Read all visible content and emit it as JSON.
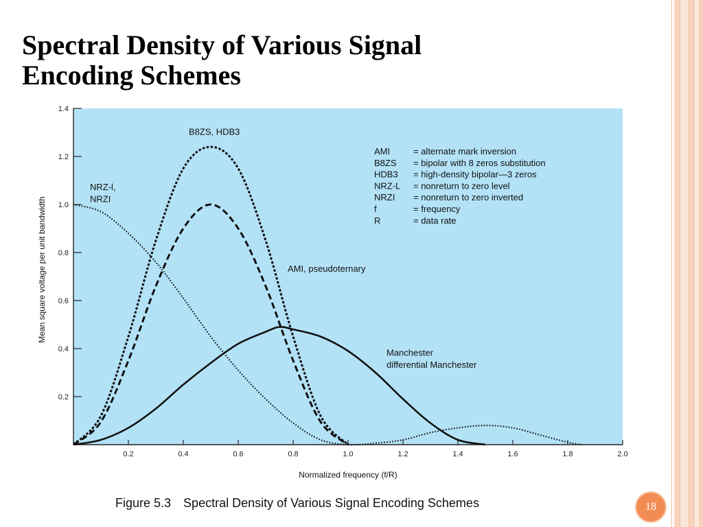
{
  "slide": {
    "title_lines": [
      "Spectral Density of Various Signal",
      "Encoding Schemes"
    ],
    "page_number": "18",
    "caption": {
      "figure": "Figure 5.3",
      "text": "Spectral Density of Various Signal Encoding Schemes"
    },
    "colors": {
      "stripe_outer": "#f6c2a6",
      "stripe_mid": "#fbe2d4",
      "badge": "#f28c55"
    }
  },
  "chart_data": {
    "type": "line",
    "background": "#b3e2f7",
    "xlabel": "Normalized frequency (f/R)",
    "ylabel": "Mean square voltage per unit bandwidth",
    "xlim": [
      0,
      2.0
    ],
    "ylim": [
      0,
      1.4
    ],
    "xticks": [
      0.2,
      0.4,
      0.6,
      0.8,
      1.0,
      1.2,
      1.4,
      1.6,
      1.8,
      2.0
    ],
    "xtick_labels": [
      "0.2",
      "0.4",
      "0.6",
      "0.8",
      "1.0",
      "1.2",
      "1.4",
      "1.6",
      "1.8",
      "2.0"
    ],
    "yticks": [
      0.2,
      0.4,
      0.6,
      0.8,
      1.0,
      1.2,
      1.4
    ],
    "ytick_labels": [
      "0.2",
      "0.4",
      "0.6",
      "0.8",
      "1.0",
      "1.2",
      "1.4"
    ],
    "series": [
      {
        "name": "NRZ-l, NRZI",
        "style": "dotted",
        "x": [
          0,
          0.1,
          0.2,
          0.3,
          0.4,
          0.5,
          0.6,
          0.7,
          0.8,
          0.9,
          1.0,
          1.1,
          1.2,
          1.3,
          1.4,
          1.5,
          1.6,
          1.7,
          1.8,
          1.85
        ],
        "y": [
          1.0,
          0.97,
          0.88,
          0.76,
          0.61,
          0.45,
          0.31,
          0.19,
          0.09,
          0.02,
          0.0,
          0.006,
          0.02,
          0.05,
          0.07,
          0.08,
          0.07,
          0.04,
          0.01,
          0.0
        ]
      },
      {
        "name": "B8ZS, HDB3",
        "style": "short-dash",
        "x": [
          0,
          0.1,
          0.2,
          0.3,
          0.4,
          0.5,
          0.6,
          0.7,
          0.8,
          0.9,
          1.0
        ],
        "y": [
          0.0,
          0.12,
          0.45,
          0.85,
          1.15,
          1.24,
          1.15,
          0.85,
          0.45,
          0.12,
          0.0
        ]
      },
      {
        "name": "AMI, pseudoternary",
        "style": "dashed",
        "x": [
          0,
          0.1,
          0.2,
          0.3,
          0.4,
          0.5,
          0.6,
          0.7,
          0.8,
          0.9,
          1.0
        ],
        "y": [
          0.0,
          0.095,
          0.35,
          0.66,
          0.9,
          1.0,
          0.9,
          0.66,
          0.35,
          0.095,
          0.0
        ]
      },
      {
        "name": "Manchester differential Manchester",
        "style": "solid",
        "x": [
          0,
          0.1,
          0.2,
          0.3,
          0.4,
          0.5,
          0.6,
          0.7,
          0.75,
          0.8,
          0.9,
          1.0,
          1.1,
          1.2,
          1.3,
          1.4,
          1.5
        ],
        "y": [
          0.0,
          0.02,
          0.07,
          0.15,
          0.25,
          0.34,
          0.42,
          0.47,
          0.49,
          0.48,
          0.45,
          0.39,
          0.3,
          0.19,
          0.09,
          0.02,
          0.0
        ]
      }
    ],
    "annotations": [
      {
        "text": "B8ZS, HDB3",
        "x": 0.42,
        "y": 1.29
      },
      {
        "text": "NRZ-l,",
        "x": 0.06,
        "y": 1.06
      },
      {
        "text": "NRZI",
        "x": 0.06,
        "y": 1.01
      },
      {
        "text": "AMI, pseudoternary",
        "x": 0.78,
        "y": 0.72
      },
      {
        "text": "Manchester",
        "x": 1.14,
        "y": 0.37
      },
      {
        "text": "differential Manchester",
        "x": 1.14,
        "y": 0.32
      }
    ],
    "legend": [
      {
        "abbr": "AMI",
        "desc": "= alternate mark inversion"
      },
      {
        "abbr": "B8ZS",
        "desc": "= bipolar with 8 zeros substitution"
      },
      {
        "abbr": "HDB3",
        "desc": "= high-density bipolar—3 zeros"
      },
      {
        "abbr": "NRZ-L",
        "desc": "= nonreturn to zero level"
      },
      {
        "abbr": "NRZI",
        "desc": "= nonreturn to zero inverted"
      },
      {
        "abbr": "f",
        "desc": "= frequency"
      },
      {
        "abbr": "R",
        "desc": "= data rate"
      }
    ],
    "legend_position": "top-right"
  }
}
